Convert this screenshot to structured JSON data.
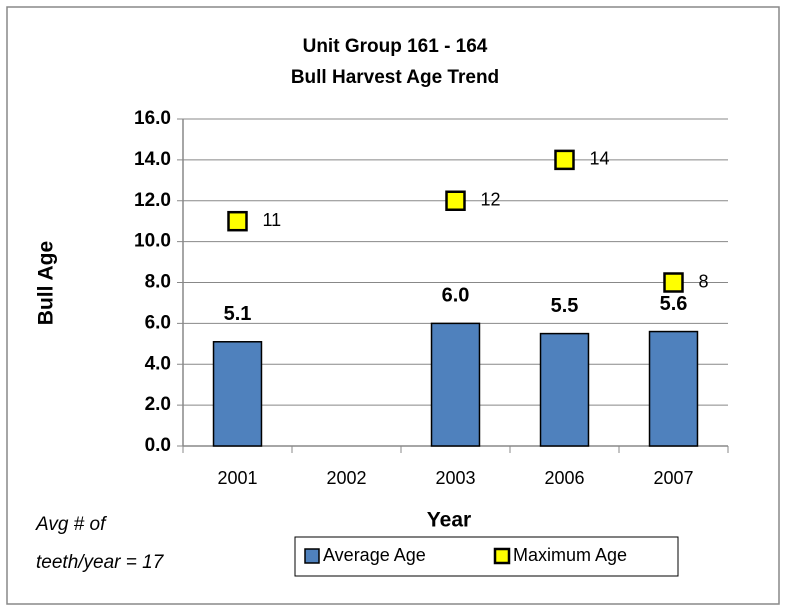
{
  "chart_data": {
    "type": "bar",
    "title": "Unit Group 161 - 164",
    "subtitle": "Bull Harvest Age Trend",
    "x_label": "Year",
    "y_label": "Bull Age",
    "annotation": [
      "Avg # of",
      "teeth/year = 17"
    ],
    "categories": [
      "2001",
      "2002",
      "2003",
      "2006",
      "2007"
    ],
    "series": [
      {
        "name": "Average Age",
        "color": "#4f81bd",
        "values": [
          5.1,
          null,
          6.0,
          5.5,
          5.6
        ],
        "value_labels": [
          "5.1",
          null,
          "6.0",
          "5.5",
          "5.6"
        ]
      },
      {
        "name": "Maximum Age",
        "color": "#ffff00",
        "marker": "square",
        "values": [
          11,
          null,
          12,
          14,
          8
        ]
      }
    ],
    "ylim": [
      0,
      16
    ],
    "yticks": [
      {
        "value": 0,
        "label": "0.0"
      },
      {
        "value": 2,
        "label": "2.0"
      },
      {
        "value": 4,
        "label": "4.0"
      },
      {
        "value": 6,
        "label": "6.0"
      },
      {
        "value": 8,
        "label": "8.0"
      },
      {
        "value": 10,
        "label": "10.0"
      },
      {
        "value": 12,
        "label": "12.0"
      },
      {
        "value": 14,
        "label": "14.0"
      },
      {
        "value": 16,
        "label": "16.0"
      }
    ],
    "grid": true,
    "legend": "bottom"
  }
}
